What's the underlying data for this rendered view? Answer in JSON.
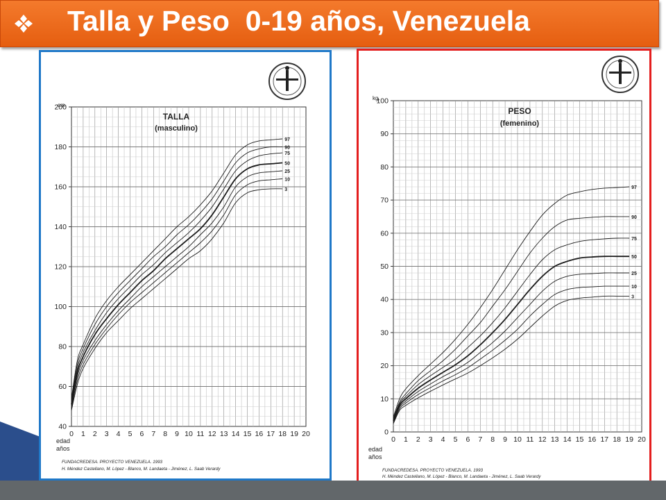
{
  "title": {
    "bullet_icon": "four-diamond-bullet-icon",
    "text": "Talla y Peso  0-19 años, Venezuela"
  },
  "theme": {
    "title_bg": "#ef6c1f",
    "left_border": "#1f78c8",
    "right_border": "#e41e1e",
    "bottom_bar": "#62676a"
  },
  "chart_data": [
    {
      "type": "line",
      "title": "TALLA",
      "subtitle": "(masculino)",
      "ylabel": "cm.",
      "xlabel": "edad años",
      "xlabel_line1": "edad",
      "xlabel_line2": "años",
      "xlim": [
        0,
        20
      ],
      "ylim": [
        40,
        200
      ],
      "grid": true,
      "x_ticks": [
        "0",
        "1",
        "2",
        "3",
        "4",
        "5",
        "6",
        "7",
        "8",
        "9",
        "10",
        "11",
        "12",
        "13",
        "14",
        "15",
        "16",
        "17",
        "18",
        "19",
        "20"
      ],
      "y_ticks": [
        "40",
        "60",
        "80",
        "100",
        "120",
        "140",
        "160",
        "180",
        "200"
      ],
      "legend_placement": "right-end labels",
      "x": [
        0,
        0.5,
        1,
        2,
        3,
        4,
        5,
        6,
        7,
        8,
        9,
        10,
        11,
        12,
        13,
        14,
        15,
        16,
        17,
        18
      ],
      "series": [
        {
          "name": "97",
          "values": [
            54,
            73,
            81,
            94,
            103,
            110,
            116,
            122,
            128,
            134,
            140,
            145,
            151,
            158,
            167,
            176,
            181,
            183,
            183.5,
            184
          ]
        },
        {
          "name": "90",
          "values": [
            53,
            71,
            79,
            91,
            100,
            107,
            113,
            119,
            125,
            130,
            136,
            141,
            147,
            154,
            163,
            172,
            177,
            179,
            180,
            180
          ]
        },
        {
          "name": "75",
          "values": [
            52,
            69,
            77,
            88,
            97,
            104,
            110,
            116,
            121,
            127,
            132,
            137,
            143,
            150,
            159,
            168,
            173,
            175.5,
            176.5,
            177
          ]
        },
        {
          "name": "50",
          "values": [
            51,
            67,
            75,
            86,
            94,
            101,
            107,
            113,
            118,
            124,
            129,
            134,
            139,
            146,
            155,
            164,
            169,
            171,
            171.5,
            172
          ]
        },
        {
          "name": "25",
          "values": [
            50,
            65,
            73,
            83,
            91,
            98,
            104,
            110,
            115,
            120,
            125,
            130,
            136,
            142,
            150,
            160,
            165,
            167,
            167.5,
            168
          ]
        },
        {
          "name": "10",
          "values": [
            49,
            63,
            71,
            81,
            89,
            96,
            102,
            107,
            112,
            117,
            122,
            127,
            132,
            138,
            146,
            156,
            161,
            163,
            163.5,
            164
          ]
        },
        {
          "name": "3",
          "values": [
            48,
            61,
            69,
            79,
            87,
            93,
            99,
            104,
            109,
            114,
            119,
            124,
            128,
            134,
            142,
            152,
            157,
            158.5,
            159,
            159
          ]
        }
      ],
      "credit_line1": "FUNDACREDESA. PROYECTO VENEZUELA. 1993",
      "credit_line2": "H. Méndez Castellano, M. López - Blanco, M. Landaeta - Jiménez, L. Saab Verardy",
      "logo_icon": "fundacredesa-logo-icon"
    },
    {
      "type": "line",
      "title": "PESO",
      "subtitle": "(femenino)",
      "ylabel": "kg.",
      "xlabel": "edad años",
      "xlabel_line1": "edad",
      "xlabel_line2": "años",
      "xlim": [
        0,
        20
      ],
      "ylim": [
        0,
        100
      ],
      "grid": true,
      "x_ticks": [
        "0",
        "1",
        "2",
        "3",
        "4",
        "5",
        "6",
        "7",
        "8",
        "9",
        "10",
        "11",
        "12",
        "13",
        "14",
        "15",
        "16",
        "17",
        "18",
        "19",
        "20"
      ],
      "y_ticks": [
        "0",
        "10",
        "20",
        "30",
        "40",
        "50",
        "60",
        "70",
        "80",
        "90",
        "100"
      ],
      "legend_placement": "right-end labels",
      "x": [
        0,
        0.5,
        1,
        2,
        3,
        4,
        5,
        6,
        7,
        8,
        9,
        10,
        11,
        12,
        13,
        14,
        15,
        16,
        17,
        18,
        19
      ],
      "series": [
        {
          "name": "97",
          "values": [
            4.5,
            10,
            13,
            17,
            20.5,
            24,
            28,
            32.5,
            37.5,
            43,
            49,
            55,
            60.5,
            65.5,
            69,
            71.5,
            72.5,
            73.2,
            73.6,
            73.8,
            74
          ]
        },
        {
          "name": "90",
          "values": [
            4,
            9,
            11.5,
            15.5,
            18.5,
            21.5,
            25,
            29,
            33,
            38,
            43,
            48.5,
            54,
            58.5,
            62,
            64,
            64.5,
            64.8,
            65,
            65,
            65
          ]
        },
        {
          "name": "75",
          "values": [
            3.7,
            8.5,
            10.7,
            14.3,
            17,
            19.5,
            22,
            25.5,
            29,
            33,
            37.5,
            42.5,
            47.5,
            52,
            55,
            56.5,
            57.5,
            58,
            58.3,
            58.5,
            58.5
          ]
        },
        {
          "name": "50",
          "values": [
            3.4,
            8,
            10,
            13.2,
            15.7,
            18,
            20.3,
            23,
            26.3,
            30,
            34,
            38.5,
            43,
            47,
            50,
            51.5,
            52.5,
            52.8,
            53,
            53,
            53
          ]
        },
        {
          "name": "25",
          "values": [
            3.1,
            7.5,
            9.3,
            12.2,
            14.5,
            16.7,
            18.7,
            21,
            24,
            27,
            30.5,
            34.5,
            38.5,
            42.5,
            45.5,
            47,
            47.6,
            47.8,
            48,
            48,
            48
          ]
        },
        {
          "name": "10",
          "values": [
            2.8,
            7,
            8.7,
            11.3,
            13.4,
            15.4,
            17.3,
            19.4,
            22,
            24.7,
            27.7,
            31,
            35,
            38.5,
            41.5,
            43,
            43.6,
            43.8,
            44,
            44,
            44
          ]
        },
        {
          "name": "3",
          "values": [
            2.5,
            6.5,
            8,
            10.3,
            12.3,
            14.2,
            16,
            17.8,
            20,
            22.4,
            25,
            28,
            31.5,
            35,
            38,
            39.7,
            40.4,
            40.7,
            41,
            41,
            41
          ]
        }
      ],
      "credit_line1": "FUNDACREDESA. PROYECTO VENEZUELA. 1993",
      "credit_line2": "H. Méndez Castellano, M. López - Blanco, M. Landaeta - Jiménez, L. Saab Verardy",
      "logo_icon": "fundacredesa-logo-icon"
    }
  ]
}
